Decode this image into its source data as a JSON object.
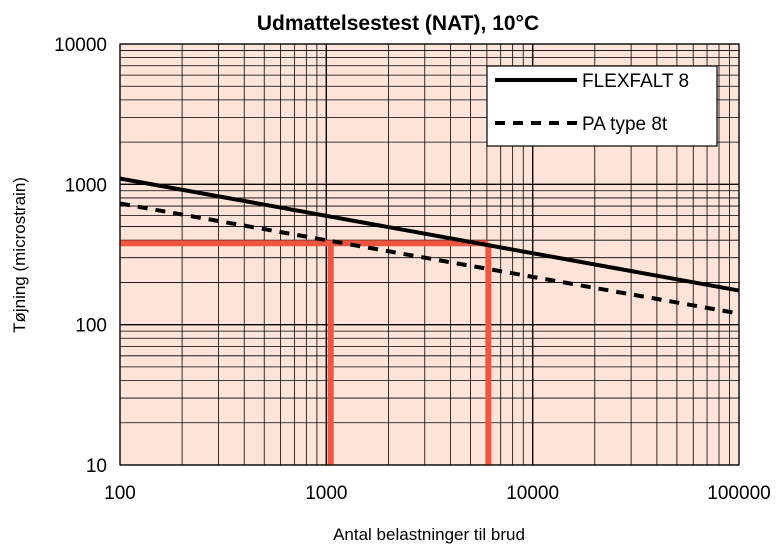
{
  "chart_data": {
    "type": "line",
    "title": "Udmattelsestest (NAT), 10°C",
    "xlabel": "Antal belastninger til brud",
    "ylabel": "Tøjning (microstrain)",
    "xscale": "log",
    "yscale": "log",
    "xlim": [
      100,
      100000
    ],
    "ylim": [
      10,
      10000
    ],
    "x_ticks": [
      "100",
      "1000",
      "10000",
      "100000"
    ],
    "y_ticks": [
      "10",
      "100",
      "1000",
      "10000"
    ],
    "grid": true,
    "legend_position": "top-right",
    "series": [
      {
        "name": "FLEXFALT 8",
        "style": "solid",
        "color": "#000000",
        "x": [
          100,
          100000
        ],
        "y": [
          1100,
          175
        ]
      },
      {
        "name": "PA type 8t",
        "style": "dashed",
        "color": "#000000",
        "x": [
          100,
          100000
        ],
        "y": [
          730,
          120
        ]
      }
    ],
    "annotations": [
      {
        "type": "hline",
        "y": 380,
        "x_from": 100,
        "x_to": 6100,
        "color": "#f0563f"
      },
      {
        "type": "vline",
        "x": 1050,
        "y_from": 10,
        "y_to": 380,
        "color": "#f0563f"
      },
      {
        "type": "vline",
        "x": 6100,
        "y_from": 10,
        "y_to": 380,
        "color": "#f0563f"
      }
    ],
    "colors": {
      "plot_background": "#fde3d8",
      "grid": "#000000"
    }
  }
}
